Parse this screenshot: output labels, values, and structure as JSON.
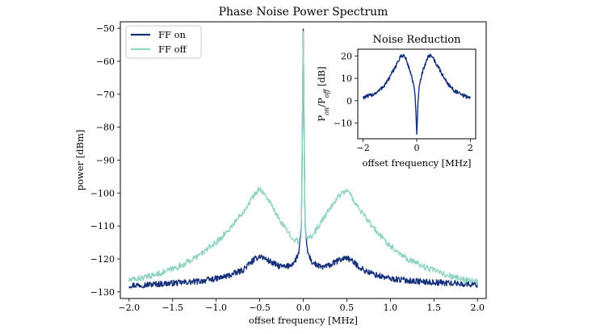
{
  "chart_data": [
    {
      "type": "line",
      "title": "Phase Noise Power Spectrum",
      "xlabel": "offset frequency [MHz]",
      "ylabel": "power [dBm]",
      "xlim": [
        -2.1,
        2.1
      ],
      "ylim": [
        -132,
        -48
      ],
      "xticks": [
        -2.0,
        -1.5,
        -1.0,
        -0.5,
        0.0,
        0.5,
        1.0,
        1.5,
        2.0
      ],
      "xtick_labels": [
        "−2.0",
        "−1.5",
        "−1.0",
        "−0.5",
        "0.0",
        "0.5",
        "1.0",
        "1.5",
        "2.0"
      ],
      "yticks": [
        -50,
        -60,
        -70,
        -80,
        -90,
        -100,
        -110,
        -120,
        -130
      ],
      "ytick_labels": [
        "−50",
        "−60",
        "−70",
        "−80",
        "−90",
        "−100",
        "−110",
        "−120",
        "−130"
      ],
      "legend_position": "top-left",
      "grid": false,
      "series": [
        {
          "name": "FF on",
          "color": "#14307a",
          "x": [
            -2.0,
            -1.8,
            -1.6,
            -1.4,
            -1.2,
            -1.0,
            -0.85,
            -0.7,
            -0.6,
            -0.5,
            -0.4,
            -0.3,
            -0.2,
            -0.1,
            -0.05,
            -0.02,
            0.0,
            0.02,
            0.05,
            0.1,
            0.2,
            0.3,
            0.4,
            0.5,
            0.6,
            0.7,
            0.85,
            1.0,
            1.2,
            1.4,
            1.6,
            1.8,
            2.0
          ],
          "y": [
            -128,
            -127.8,
            -127.5,
            -127.2,
            -126.8,
            -126,
            -125,
            -123.5,
            -121,
            -119,
            -120.5,
            -122,
            -122.5,
            -121,
            -118,
            -110,
            -51,
            -110,
            -118,
            -121,
            -122.5,
            -122,
            -120.5,
            -119.5,
            -121.5,
            -123.5,
            -125,
            -126,
            -126.5,
            -127,
            -127.2,
            -127.5,
            -127.8
          ]
        },
        {
          "name": "FF off",
          "color": "#8fd4c4",
          "x": [
            -2.0,
            -1.8,
            -1.6,
            -1.4,
            -1.2,
            -1.0,
            -0.85,
            -0.7,
            -0.6,
            -0.5,
            -0.4,
            -0.3,
            -0.2,
            -0.1,
            -0.05,
            -0.02,
            0.0,
            0.02,
            0.05,
            0.1,
            0.2,
            0.3,
            0.4,
            0.5,
            0.6,
            0.7,
            0.85,
            1.0,
            1.2,
            1.4,
            1.6,
            1.8,
            2.0
          ],
          "y": [
            -126.5,
            -125.5,
            -124,
            -122,
            -119,
            -115,
            -111,
            -106,
            -102,
            -98.5,
            -102,
            -107,
            -111,
            -114,
            -115,
            -110,
            -51,
            -110,
            -114,
            -113,
            -109,
            -105,
            -101,
            -99,
            -103,
            -107,
            -112,
            -116,
            -120,
            -122.5,
            -124.5,
            -126,
            -127
          ]
        }
      ]
    },
    {
      "type": "line",
      "title": "Noise Reduction",
      "xlabel": "offset frequency [MHz]",
      "ylabel": "Pon/Poff [dB]",
      "ylabel_parts": {
        "p1": "P",
        "s1": "on",
        "mid": "/P",
        "s2": "off",
        "unit": " [dB]"
      },
      "xlim": [
        -2.2,
        2.2
      ],
      "ylim": [
        -17,
        23
      ],
      "xticks": [
        -2,
        0,
        2
      ],
      "xtick_labels": [
        "−2",
        "0",
        "2"
      ],
      "yticks": [
        20,
        10,
        0,
        -10
      ],
      "ytick_labels": [
        "20",
        "10",
        "0",
        "−10"
      ],
      "series": [
        {
          "name": "",
          "color": "#14307a",
          "x": [
            -2.0,
            -1.8,
            -1.6,
            -1.4,
            -1.2,
            -1.0,
            -0.85,
            -0.7,
            -0.6,
            -0.5,
            -0.4,
            -0.3,
            -0.2,
            -0.1,
            -0.05,
            0.0,
            0.05,
            0.1,
            0.2,
            0.3,
            0.4,
            0.5,
            0.6,
            0.7,
            0.85,
            1.0,
            1.2,
            1.4,
            1.6,
            1.8,
            2.0
          ],
          "y": [
            1.5,
            2.0,
            3.0,
            4.5,
            7.0,
            10.5,
            14.0,
            17.5,
            19.5,
            20.5,
            18.5,
            15.0,
            11.5,
            6.0,
            0.0,
            -15.0,
            0.0,
            6.5,
            12.0,
            16.0,
            19.0,
            20.5,
            19.5,
            17.0,
            14.0,
            10.5,
            7.0,
            4.5,
            3.0,
            2.0,
            1.5
          ]
        }
      ]
    }
  ]
}
